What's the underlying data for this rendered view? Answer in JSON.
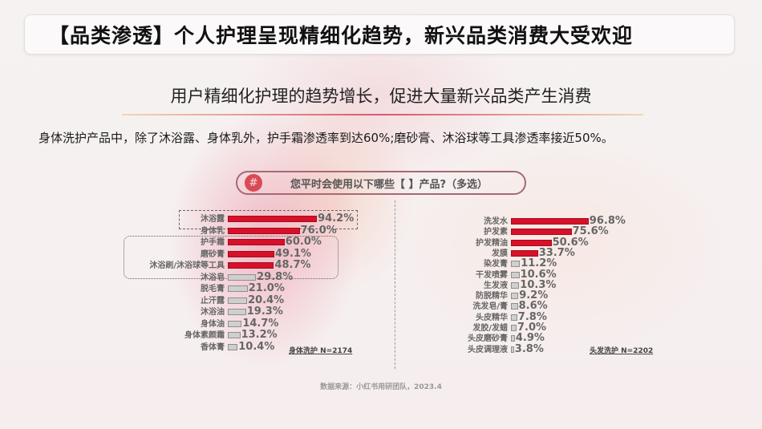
{
  "title": "【品类渗透】个人护理呈现精细化趋势，新兴品类消费大受欢迎",
  "subtitle": "用户精细化护理的趋势增长，促进大量新兴品类产生消费",
  "description": "身体洗护产品中，除了沐浴露、身体乳外，护手霜渗透率到达60%;磨砂膏、沐浴球等工具渗透率接近50%。",
  "question": {
    "icon": "#",
    "text": "您平时会使用以下哪些【 】产品?（多选）"
  },
  "source": "数据来源：小红书用研团队，2023.4",
  "colors": {
    "highlight_bar": "#d6112a",
    "normal_bar": "#d0cfcf",
    "question_border": "#a56a73",
    "question_icon": "#d84a56"
  },
  "chart_data": [
    {
      "type": "bar",
      "orientation": "horizontal",
      "title": "身体洗护 N=2174",
      "categories": [
        "沐浴露",
        "身体乳",
        "护手霜",
        "磨砂膏",
        "沐浴刷/沐浴球等工具",
        "沐浴皂",
        "脱毛膏",
        "止汗露",
        "沐浴油",
        "身体油",
        "身体素颜霜",
        "香体膏"
      ],
      "values": [
        94.2,
        76.0,
        60.0,
        49.1,
        48.7,
        29.8,
        21.0,
        20.4,
        19.3,
        14.7,
        13.2,
        10.4
      ],
      "labels": [
        "94.2%",
        "76.0%",
        "60.0%",
        "49.1%",
        "48.7%",
        "29.8%",
        "21.0%",
        "20.4%",
        "19.3%",
        "14.7%",
        "13.2%",
        "10.4%"
      ],
      "highlighted": [
        true,
        true,
        true,
        true,
        true,
        false,
        false,
        false,
        false,
        false,
        false,
        false
      ],
      "unit": "%",
      "xlim": [
        0,
        100
      ],
      "grid": false,
      "annotations": [
        "dashed box around 沐浴露",
        "dashed box around 护手霜, 磨砂膏, 沐浴刷/沐浴球等工具"
      ]
    },
    {
      "type": "bar",
      "orientation": "horizontal",
      "title": "头发洗护 N=2202",
      "categories": [
        "洗发水",
        "护发素",
        "护发精油",
        "发膜",
        "染发膏",
        "干发喷雾",
        "生发液",
        "防脱精华",
        "洗发皂/膏",
        "头皮精华",
        "发胶/发蜡",
        "头皮磨砂膏",
        "头皮调理液"
      ],
      "values": [
        96.8,
        75.6,
        50.6,
        33.7,
        11.2,
        10.6,
        10.3,
        9.2,
        8.6,
        7.8,
        7.0,
        4.9,
        3.8
      ],
      "labels": [
        "96.8%",
        "75.6%",
        "50.6%",
        "33.7%",
        "11.2%",
        "10.6%",
        "10.3%",
        "9.2%",
        "8.6%",
        "7.8%",
        "7.0%",
        "4.9%",
        "3.8%"
      ],
      "highlighted": [
        true,
        true,
        true,
        true,
        false,
        false,
        false,
        false,
        false,
        false,
        false,
        false,
        false
      ],
      "unit": "%",
      "xlim": [
        0,
        100
      ],
      "grid": false
    }
  ]
}
